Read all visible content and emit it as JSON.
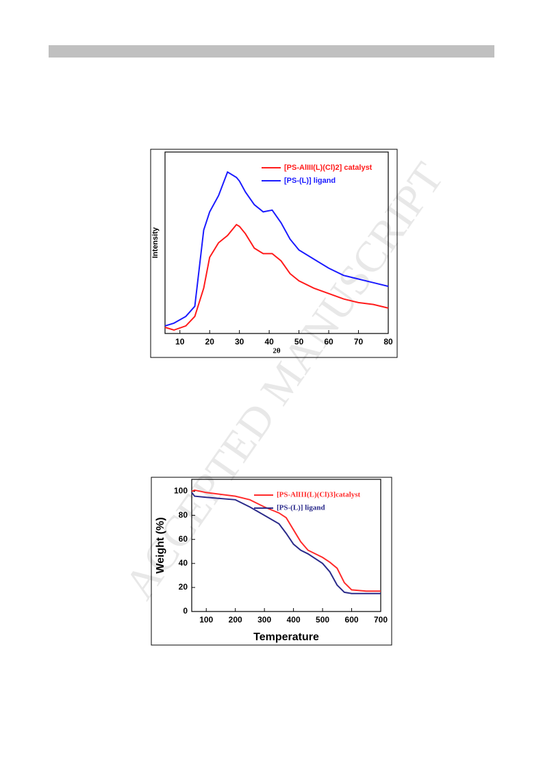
{
  "watermark": "ACCEPTED MANUSCRIPT",
  "chart_data": [
    {
      "type": "line",
      "xlabel": "2θ",
      "ylabel": "Intensity",
      "x": [
        5,
        8,
        12,
        15,
        18,
        20,
        23,
        26,
        29,
        30,
        32,
        35,
        38,
        41,
        44,
        47,
        50,
        55,
        60,
        65,
        70,
        75,
        80
      ],
      "series": [
        {
          "name": "[PS-AlIII(L)(Cl)2] catalyst",
          "color": "#ff1a1a",
          "values": [
            3.4,
            1.9,
            4.2,
            9.4,
            25,
            42,
            50,
            54,
            60,
            59,
            55,
            47,
            44,
            44,
            40,
            33,
            29,
            25,
            22,
            19,
            17,
            16,
            14
          ]
        },
        {
          "name": "[PS-(L)] ligand",
          "color": "#1a1aff",
          "values": [
            4.2,
            5.7,
            9.4,
            15,
            57,
            67,
            76,
            89,
            86,
            84,
            78,
            71,
            67,
            68,
            61,
            52,
            46,
            41,
            36,
            32,
            30,
            28,
            26
          ]
        }
      ],
      "xlim": [
        5,
        80
      ],
      "xticks": [
        10,
        20,
        30,
        40,
        50,
        60,
        70,
        80
      ],
      "ylim": [
        0,
        100
      ],
      "legend": "upper right"
    },
    {
      "type": "line",
      "xlabel": "Temperature",
      "ylabel": "Weight (%)",
      "x": [
        50,
        60,
        100,
        200,
        250,
        300,
        350,
        375,
        400,
        425,
        450,
        500,
        525,
        550,
        575,
        600,
        650,
        700
      ],
      "series": [
        {
          "name": "[PS-AlIII(L)(Cl)3]catalyst",
          "color": "#ff2a2a",
          "values": [
            100,
            101,
            99,
            96,
            93,
            87,
            82,
            78,
            68,
            58,
            51,
            45,
            41,
            36,
            24,
            18,
            17,
            17
          ]
        },
        {
          "name": "[PS-(L)] ligand",
          "color": "#2a2a8a",
          "values": [
            99,
            96,
            95,
            93,
            87,
            80,
            73,
            65,
            56,
            51,
            48,
            40,
            33,
            22,
            16,
            15,
            15,
            15
          ]
        }
      ],
      "xlim": [
        50,
        700
      ],
      "xticks": [
        100,
        200,
        300,
        400,
        500,
        600,
        700
      ],
      "ylim": [
        0,
        110
      ],
      "yticks": [
        0,
        20,
        40,
        60,
        80,
        100
      ],
      "legend": "upper right"
    }
  ]
}
